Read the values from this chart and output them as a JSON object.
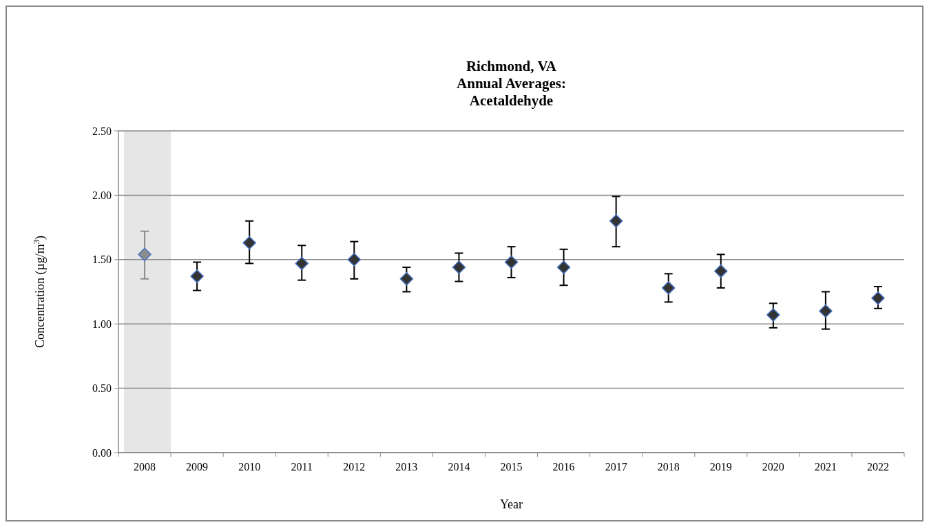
{
  "chart_data": {
    "type": "scatter",
    "title": "Richmond, VA\nAnnual Averages:\nAcetaldehyde",
    "xlabel": "Year",
    "ylabel": "Concentration (µg/m$^{3}$)",
    "categories": [
      "2008",
      "2009",
      "2010",
      "2011",
      "2012",
      "2013",
      "2014",
      "2015",
      "2016",
      "2017",
      "2018",
      "2019",
      "2020",
      "2021",
      "2022"
    ],
    "values": [
      1.54,
      1.37,
      1.63,
      1.47,
      1.5,
      1.35,
      1.44,
      1.48,
      1.44,
      1.8,
      1.28,
      1.41,
      1.07,
      1.1,
      1.2
    ],
    "errors": [
      [
        1.35,
        1.72
      ],
      [
        1.26,
        1.48
      ],
      [
        1.47,
        1.8
      ],
      [
        1.34,
        1.61
      ],
      [
        1.35,
        1.64
      ],
      [
        1.25,
        1.44
      ],
      [
        1.33,
        1.55
      ],
      [
        1.36,
        1.6
      ],
      [
        1.3,
        1.58
      ],
      [
        1.6,
        1.99
      ],
      [
        1.17,
        1.39
      ],
      [
        1.28,
        1.54
      ],
      [
        0.97,
        1.16
      ],
      [
        0.96,
        1.25
      ],
      [
        1.12,
        1.29
      ]
    ],
    "colors": [
      "#8c8c8c",
      "#333333",
      "#333333",
      "#333333",
      "#333333",
      "#333333",
      "#333333",
      "#333333",
      "#333333",
      "#333333",
      "#333333",
      "#333333",
      "#333333",
      "#333333",
      "#333333"
    ],
    "ylim": [
      0,
      2.5
    ],
    "yticks": [
      {
        "value": 0,
        "label": "0.00"
      },
      {
        "value": 0.5,
        "label": "0.50"
      },
      {
        "value": 1,
        "label": "1.00"
      },
      {
        "value": 1.5,
        "label": "1.50"
      },
      {
        "value": 2,
        "label": "2.00"
      },
      {
        "value": 2.5,
        "label": "2.50"
      }
    ],
    "bands": [
      {
        "axis": "x",
        "from": "2008",
        "to": "2008",
        "color": "#e6e6e6"
      }
    ],
    "grid": "y",
    "marker": "diamond"
  }
}
